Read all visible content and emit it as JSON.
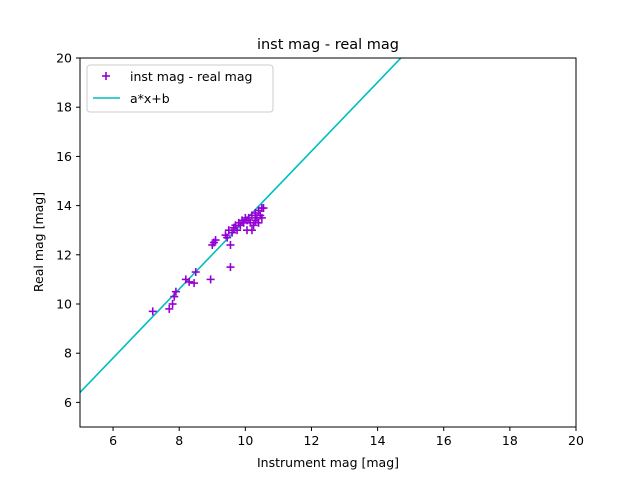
{
  "chart_data": {
    "type": "scatter",
    "title": "inst mag - real mag",
    "xlabel": "Instrument mag [mag]",
    "ylabel": "Real mag [mag]",
    "xlim": [
      5,
      20
    ],
    "ylim": [
      5,
      20
    ],
    "xticks": [
      6,
      8,
      10,
      12,
      14,
      16,
      18,
      20
    ],
    "yticks": [
      6,
      8,
      10,
      12,
      14,
      16,
      18,
      20
    ],
    "grid": false,
    "legend_position": "upper-left",
    "series": [
      {
        "name": "inst mag - real mag",
        "kind": "scatter",
        "marker": "plus",
        "color": "#9400d3",
        "points": [
          [
            7.2,
            9.7
          ],
          [
            7.7,
            9.8
          ],
          [
            7.8,
            10.0
          ],
          [
            7.85,
            10.3
          ],
          [
            7.9,
            10.5
          ],
          [
            8.2,
            11.0
          ],
          [
            8.3,
            10.9
          ],
          [
            8.45,
            10.85
          ],
          [
            8.5,
            11.3
          ],
          [
            8.95,
            11.0
          ],
          [
            9.0,
            12.4
          ],
          [
            9.05,
            12.5
          ],
          [
            9.1,
            12.6
          ],
          [
            9.4,
            12.8
          ],
          [
            9.45,
            12.7
          ],
          [
            9.5,
            13.0
          ],
          [
            9.55,
            11.5
          ],
          [
            9.55,
            12.4
          ],
          [
            9.6,
            12.9
          ],
          [
            9.65,
            13.1
          ],
          [
            9.7,
            13.2
          ],
          [
            9.75,
            13.0
          ],
          [
            9.8,
            13.3
          ],
          [
            9.85,
            13.2
          ],
          [
            9.9,
            13.4
          ],
          [
            9.95,
            13.3
          ],
          [
            10.0,
            13.5
          ],
          [
            10.05,
            13.0
          ],
          [
            10.05,
            13.4
          ],
          [
            10.1,
            13.5
          ],
          [
            10.15,
            13.3
          ],
          [
            10.2,
            13.6
          ],
          [
            10.2,
            13.0
          ],
          [
            10.25,
            13.2
          ],
          [
            10.3,
            13.7
          ],
          [
            10.3,
            13.4
          ],
          [
            10.35,
            13.5
          ],
          [
            10.4,
            13.8
          ],
          [
            10.4,
            13.3
          ],
          [
            10.45,
            13.6
          ],
          [
            10.5,
            13.9
          ],
          [
            10.5,
            13.5
          ],
          [
            10.55,
            13.9
          ]
        ]
      },
      {
        "name": "a*x+b",
        "kind": "line",
        "color": "#00bfbf",
        "slope": 1.401,
        "intercept": -0.6
      }
    ]
  }
}
